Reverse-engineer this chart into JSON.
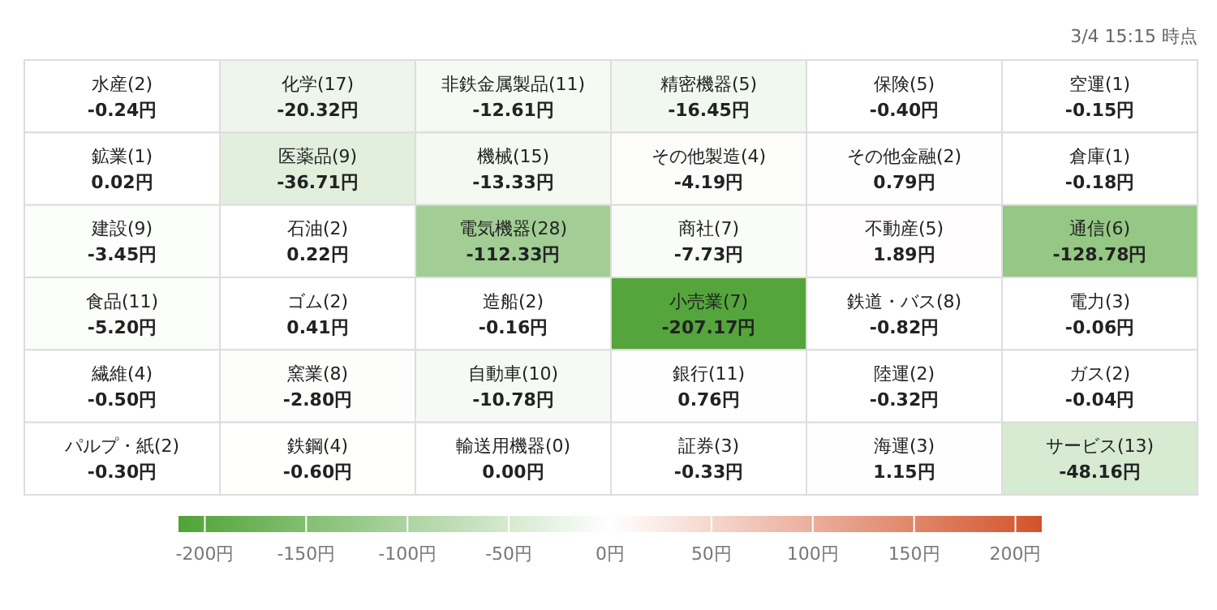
{
  "chart_data": {
    "type": "heatmap",
    "annotations": [
      "3/4 15:15 時点"
    ],
    "categories": [
      null,
      null,
      null,
      null,
      null,
      null
    ],
    "y_categories": [
      null,
      null,
      null,
      null,
      null,
      null
    ],
    "cells": [
      [
        -0.24,
        -20.32,
        -12.61,
        -16.45,
        -0.4,
        -0.15
      ],
      [
        0.02,
        -36.71,
        -13.33,
        -4.19,
        0.79,
        -0.18
      ],
      [
        -3.45,
        0.22,
        -112.33,
        -7.73,
        1.89,
        -128.78
      ],
      [
        -5.2,
        0.41,
        -0.16,
        -207.17,
        -0.82,
        -0.06
      ],
      [
        -0.5,
        -2.8,
        -10.78,
        0.76,
        -0.32,
        -0.04
      ],
      [
        -0.3,
        -0.6,
        0.0,
        -0.33,
        1.15,
        -48.16
      ]
    ],
    "cell_labels": [
      [
        "水産(2)\n-0.24円",
        "化学(17)\n-20.32円",
        "非鉄金属製品(11)\n-12.61円",
        "精密機器(5)\n-16.45円",
        "保険(5)\n-0.40円",
        "空運(1)\n-0.15円"
      ],
      [
        "鉱業(1)\n0.02円",
        "医薬品(9)\n-36.71円",
        "機械(15)\n-13.33円",
        "その他製造(4)\n-4.19円",
        "その他金融(2)\n0.79円",
        "倉庫(1)\n-0.18円"
      ],
      [
        "建設(9)\n-3.45円",
        "石油(2)\n0.22円",
        "電気機器(28)\n-112.33円",
        "商社(7)\n-7.73円",
        "不動産(5)\n1.89円",
        "通信(6)\n-128.78円"
      ],
      [
        "食品(11)\n-5.20円",
        "ゴム(2)\n0.41円",
        "造船(2)\n-0.16円",
        "小売業(7)\n-207.17円",
        "鉄道・バス(8)\n-0.82円",
        "電力(3)\n-0.06円"
      ],
      [
        "繊維(4)\n-0.50円",
        "窯業(8)\n-2.80円",
        "自動車(10)\n-10.78円",
        "銀行(11)\n0.76円",
        "陸運(2)\n-0.32円",
        "ガス(2)\n-0.04円"
      ],
      [
        "パルプ・紙(2)\n-0.30円",
        "鉄鋼(4)\n-0.60円",
        "輸送用機器(0)\n0.00円",
        "証券(3)\n-0.33円",
        "海運(3)\n1.15円",
        "サービス(13)\n-48.16円"
      ]
    ],
    "colors": [
      "#4fa336",
      "#ffffff",
      "#d2532b"
    ],
    "clim": [
      -213,
      213
    ],
    "cticks": [
      {
        "value": -200,
        "label": "-200円"
      },
      {
        "value": -150,
        "label": "-150円"
      },
      {
        "value": -100,
        "label": "-100円"
      },
      {
        "value": -50,
        "label": "-50円"
      },
      {
        "value": 0,
        "label": "0円"
      },
      {
        "value": 50,
        "label": "50円"
      },
      {
        "value": 100,
        "label": "100円"
      },
      {
        "value": 150,
        "label": "150円"
      },
      {
        "value": 200,
        "label": "200円"
      }
    ]
  }
}
